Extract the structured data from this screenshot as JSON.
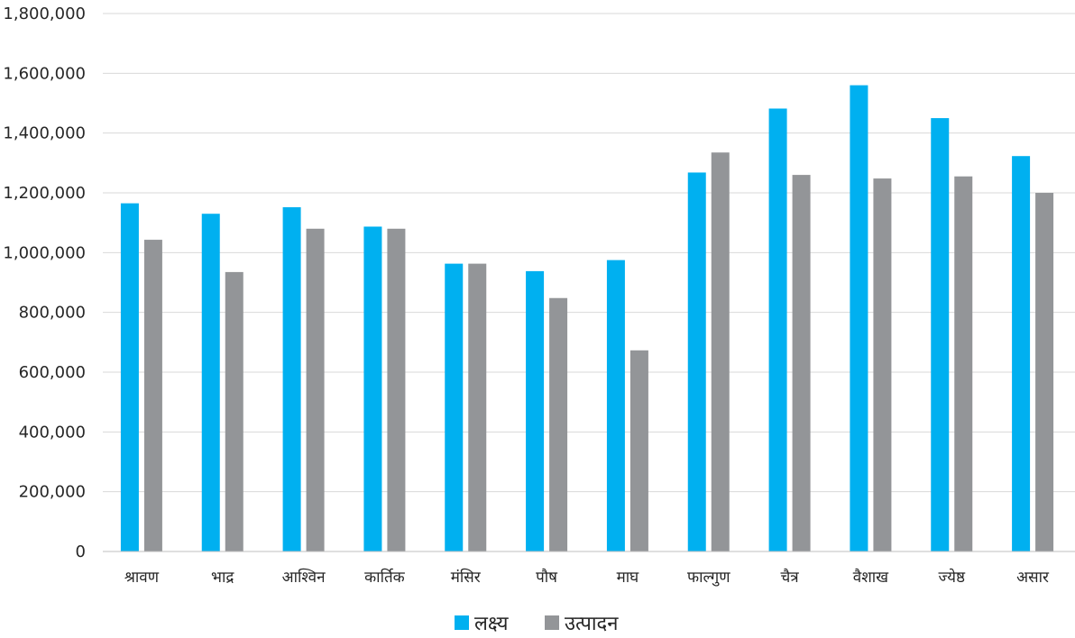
{
  "chart_data": {
    "type": "bar",
    "categories": [
      "श्रावण",
      "भाद्र",
      "आश्विन",
      "कार्तिक",
      "मंसिर",
      "पौष",
      "माघ",
      "फाल्गुण",
      "चैत्र",
      "वैशाख",
      "ज्येष्ठ",
      "असार"
    ],
    "series": [
      {
        "name": "लक्ष्य",
        "color": "#00B0F0",
        "values": [
          1165000,
          1130000,
          1152000,
          1087000,
          963000,
          938000,
          975000,
          1268000,
          1482000,
          1560000,
          1450000,
          1323000
        ]
      },
      {
        "name": "उत्पादन",
        "color": "#939598",
        "values": [
          1043000,
          935000,
          1080000,
          1080000,
          963000,
          848000,
          673000,
          1335000,
          1260000,
          1248000,
          1255000,
          1200000
        ]
      }
    ],
    "ylim": [
      0,
      1800000
    ],
    "yticks": [
      0,
      200000,
      400000,
      600000,
      800000,
      1000000,
      1200000,
      1400000,
      1600000,
      1800000
    ],
    "ytick_labels": [
      "0",
      "200,000",
      "400,000",
      "600,000",
      "800,000",
      "1,000,000",
      "1,200,000",
      "1,400,000",
      "1,600,000",
      "1,800,000"
    ],
    "grid": true,
    "legend_position": "bottom"
  }
}
